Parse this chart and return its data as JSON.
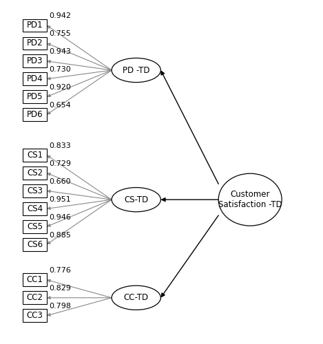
{
  "pd_boxes": [
    "PD1",
    "PD2",
    "PD3",
    "PD4",
    "PD5",
    "PD6"
  ],
  "pd_loadings": [
    "0.942",
    "0.755",
    "0.943",
    "0.730",
    "0.920",
    "0.654"
  ],
  "cs_boxes": [
    "CS1",
    "CS2",
    "CS3",
    "CS4",
    "CS5",
    "CS6"
  ],
  "cs_loadings": [
    "0.833",
    "0.729",
    "0.660",
    "0.951",
    "0.946",
    "0.885"
  ],
  "cc_boxes": [
    "CC1",
    "CC2",
    "CC3"
  ],
  "cc_loadings": [
    "0.776",
    "0.829",
    "0.798"
  ],
  "pd_ellipse_label": "PD -TD",
  "cs_ellipse_label": "CS-TD",
  "cc_ellipse_label": "CC-TD",
  "main_ellipse_label": "Customer\nSatisfaction -TD",
  "bg_color": "#ffffff",
  "box_color": "#ffffff",
  "box_edge_color": "#000000",
  "ellipse_edge_color": "#000000",
  "line_color": "#888888",
  "arrow_color": "#000000",
  "text_color": "#000000",
  "font_size": 8.5,
  "loading_font_size": 8.0
}
